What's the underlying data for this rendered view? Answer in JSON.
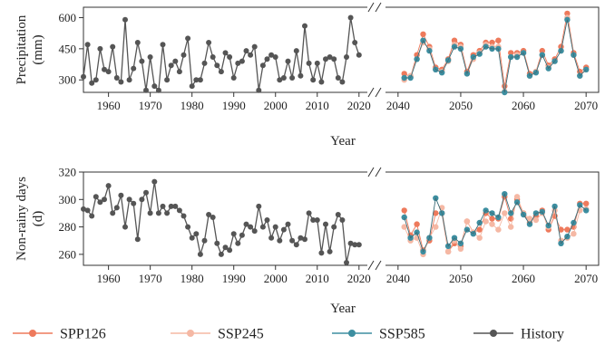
{
  "chart_data": [
    {
      "type": "line",
      "ylabel": "Precipitation (mm)",
      "xlabel": "Year",
      "ylim_left": [
        240,
        650
      ],
      "ylim_right": [
        240,
        650
      ],
      "yticks": [
        300,
        450,
        600
      ],
      "left_panel": {
        "xlim": [
          1954,
          2022
        ],
        "xticks": [
          1960,
          1970,
          1980,
          1990,
          2000,
          2010,
          2020
        ],
        "series": [
          {
            "name": "History",
            "color": "#555555",
            "x": [
              1954,
              1955,
              1956,
              1957,
              1958,
              1959,
              1960,
              1961,
              1962,
              1963,
              1964,
              1965,
              1966,
              1967,
              1968,
              1969,
              1970,
              1971,
              1972,
              1973,
              1974,
              1975,
              1976,
              1977,
              1978,
              1979,
              1980,
              1981,
              1982,
              1983,
              1984,
              1985,
              1986,
              1987,
              1988,
              1989,
              1990,
              1991,
              1992,
              1993,
              1994,
              1995,
              1996,
              1997,
              1998,
              1999,
              2000,
              2001,
              2002,
              2003,
              2004,
              2005,
              2006,
              2007,
              2008,
              2009,
              2010,
              2011,
              2012,
              2013,
              2014,
              2015,
              2016,
              2017,
              2018,
              2019,
              2020
            ],
            "y": [
              315,
              470,
              285,
              300,
              450,
              350,
              340,
              460,
              310,
              290,
              590,
              300,
              355,
              480,
              390,
              250,
              410,
              270,
              250,
              470,
              300,
              370,
              390,
              340,
              420,
              500,
              270,
              300,
              300,
              380,
              480,
              410,
              370,
              340,
              430,
              410,
              310,
              380,
              390,
              440,
              420,
              460,
              250,
              370,
              400,
              420,
              410,
              300,
              310,
              390,
              310,
              440,
              320,
              560,
              380,
              300,
              380,
              290,
              400,
              410,
              400,
              310,
              290,
              410,
              600,
              480,
              420
            ]
          }
        ]
      },
      "right_panel": {
        "xlim": [
          2038,
          2072
        ],
        "xticks": [
          2040,
          2050,
          2060,
          2070
        ],
        "series": [
          {
            "name": "SPP126",
            "color": "#ee7a5c",
            "x": [
              2041,
              2042,
              2043,
              2044,
              2045,
              2046,
              2047,
              2048,
              2049,
              2050,
              2051,
              2052,
              2053,
              2054,
              2055,
              2056,
              2057,
              2058,
              2059,
              2060,
              2061,
              2062,
              2063,
              2064,
              2065,
              2066,
              2067,
              2068,
              2069,
              2070
            ],
            "y": [
              330,
              315,
              420,
              520,
              460,
              360,
              350,
              400,
              490,
              470,
              340,
              420,
              440,
              480,
              480,
              490,
              270,
              430,
              430,
              440,
              330,
              340,
              440,
              370,
              400,
              460,
              620,
              430,
              340,
              360
            ]
          },
          {
            "name": "SSP245",
            "color": "#f5b8a4",
            "x": [
              2041,
              2042,
              2043,
              2044,
              2045,
              2046,
              2047,
              2048,
              2049,
              2050,
              2051,
              2052,
              2053,
              2054,
              2055,
              2056,
              2057,
              2058,
              2059,
              2060,
              2061,
              2062,
              2063,
              2064,
              2065,
              2066,
              2067,
              2068,
              2069,
              2070
            ],
            "y": [
              300,
              320,
              400,
              480,
              450,
              350,
              340,
              390,
              470,
              460,
              330,
              400,
              430,
              470,
              460,
              460,
              245,
              410,
              420,
              430,
              320,
              340,
              420,
              360,
              390,
              440,
              600,
              420,
              320,
              350
            ]
          },
          {
            "name": "SSP585",
            "color": "#3d8ea0",
            "x": [
              2041,
              2042,
              2043,
              2044,
              2045,
              2046,
              2047,
              2048,
              2049,
              2050,
              2051,
              2052,
              2053,
              2054,
              2055,
              2056,
              2057,
              2058,
              2059,
              2060,
              2061,
              2062,
              2063,
              2064,
              2065,
              2066,
              2067,
              2068,
              2069,
              2070
            ],
            "y": [
              310,
              310,
              400,
              490,
              440,
              350,
              335,
              395,
              460,
              450,
              330,
              410,
              425,
              460,
              450,
              450,
              240,
              410,
              410,
              430,
              320,
              335,
              420,
              355,
              390,
              440,
              590,
              420,
              320,
              350
            ]
          }
        ]
      }
    },
    {
      "type": "line",
      "ylabel": "Non-rainy days (d)",
      "xlabel": "Year",
      "ylim_left": [
        252,
        320
      ],
      "ylim_right": [
        252,
        320
      ],
      "yticks": [
        260,
        280,
        300,
        320
      ],
      "left_panel": {
        "xlim": [
          1954,
          2022
        ],
        "xticks": [
          1960,
          1970,
          1980,
          1990,
          2000,
          2010,
          2020
        ],
        "series": [
          {
            "name": "History",
            "color": "#555555",
            "x": [
              1954,
              1955,
              1956,
              1957,
              1958,
              1959,
              1960,
              1961,
              1962,
              1963,
              1964,
              1965,
              1966,
              1967,
              1968,
              1969,
              1970,
              1971,
              1972,
              1973,
              1974,
              1975,
              1976,
              1977,
              1978,
              1979,
              1980,
              1981,
              1982,
              1983,
              1984,
              1985,
              1986,
              1987,
              1988,
              1989,
              1990,
              1991,
              1992,
              1993,
              1994,
              1995,
              1996,
              1997,
              1998,
              1999,
              2000,
              2001,
              2002,
              2003,
              2004,
              2005,
              2006,
              2007,
              2008,
              2009,
              2010,
              2011,
              2012,
              2013,
              2014,
              2015,
              2016,
              2017,
              2018,
              2019,
              2020
            ],
            "y": [
              293,
              292,
              288,
              302,
              298,
              300,
              310,
              290,
              294,
              303,
              280,
              300,
              297,
              271,
              300,
              305,
              290,
              313,
              290,
              295,
              290,
              295,
              295,
              292,
              288,
              280,
              272,
              275,
              260,
              270,
              289,
              287,
              268,
              260,
              265,
              263,
              275,
              268,
              274,
              282,
              280,
              277,
              295,
              280,
              285,
              272,
              280,
              270,
              278,
              282,
              270,
              267,
              272,
              271,
              290,
              285,
              285,
              261,
              282,
              262,
              280,
              289,
              285,
              254,
              268,
              267,
              267
            ]
          }
        ]
      },
      "right_panel": {
        "xlim": [
          2038,
          2072
        ],
        "xticks": [
          2040,
          2050,
          2060,
          2070
        ],
        "series": [
          {
            "name": "SPP126",
            "color": "#ee7a5c",
            "x": [
              2041,
              2042,
              2043,
              2044,
              2045,
              2046,
              2047,
              2048,
              2049,
              2050,
              2051,
              2052,
              2053,
              2054,
              2055,
              2056,
              2057,
              2058,
              2059,
              2060,
              2061,
              2062,
              2063,
              2064,
              2065,
              2066,
              2067,
              2068,
              2069,
              2070
            ],
            "y": [
              292,
              274,
              282,
              263,
              270,
              290,
              290,
              262,
              268,
              266,
              284,
              276,
              278,
              290,
              286,
              286,
              302,
              286,
              300,
              290,
              283,
              288,
              292,
              278,
              288,
              278,
              278,
              280,
              297,
              297
            ]
          },
          {
            "name": "SSP245",
            "color": "#f5b8a4",
            "x": [
              2041,
              2042,
              2043,
              2044,
              2045,
              2046,
              2047,
              2048,
              2049,
              2050,
              2051,
              2052,
              2053,
              2054,
              2055,
              2056,
              2057,
              2058,
              2059,
              2060,
              2061,
              2062,
              2063,
              2064,
              2065,
              2066,
              2067,
              2068,
              2069,
              2070
            ],
            "y": [
              280,
              270,
              272,
              260,
              272,
              280,
              294,
              262,
              270,
              264,
              284,
              276,
              272,
              284,
              282,
              278,
              290,
              280,
              302,
              290,
              286,
              285,
              290,
              280,
              292,
              270,
              272,
              275,
              292,
              293
            ]
          },
          {
            "name": "SSP585",
            "color": "#3d8ea0",
            "x": [
              2041,
              2042,
              2043,
              2044,
              2045,
              2046,
              2047,
              2048,
              2049,
              2050,
              2051,
              2052,
              2053,
              2054,
              2055,
              2056,
              2057,
              2058,
              2059,
              2060,
              2061,
              2062,
              2063,
              2064,
              2065,
              2066,
              2067,
              2068,
              2069,
              2070
            ],
            "y": [
              287,
              272,
              276,
              262,
              272,
              301,
              290,
              266,
              272,
              268,
              278,
              275,
              283,
              292,
              290,
              287,
              304,
              290,
              298,
              289,
              282,
              290,
              291,
              281,
              295,
              268,
              273,
              283,
              296,
              292
            ]
          }
        ]
      }
    }
  ],
  "legend": [
    {
      "label": "SPP126",
      "color": "#ee7a5c"
    },
    {
      "label": "SSP245",
      "color": "#f5b8a4"
    },
    {
      "label": "SSP585",
      "color": "#3d8ea0"
    },
    {
      "label": "History",
      "color": "#555555"
    }
  ]
}
